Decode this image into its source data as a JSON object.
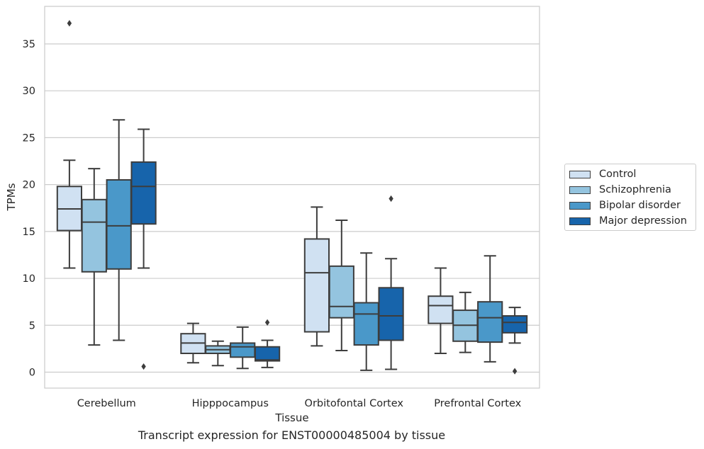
{
  "chart_data": {
    "type": "box",
    "title": "",
    "caption": "Transcript expression for ENST00000485004 by tissue",
    "xlabel": "Tissue",
    "ylabel": "TPMs",
    "categories": [
      "Cerebellum",
      "Hipppocampus",
      "Orbitofontal Cortex",
      "Prefrontal Cortex"
    ],
    "yticks": [
      0,
      5,
      10,
      15,
      20,
      25,
      30,
      35
    ],
    "ylim": [
      -1.7,
      39.0
    ],
    "grid": "horizontal",
    "legend_position": "right",
    "series": [
      {
        "name": "Control",
        "color": "#d0e1f2",
        "boxes": [
          {
            "whislo": 11.1,
            "q1": 15.1,
            "med": 17.4,
            "q3": 19.8,
            "whishi": 22.6,
            "fliers": []
          },
          {
            "whislo": 1.0,
            "q1": 2.0,
            "med": 3.1,
            "q3": 4.1,
            "whishi": 5.2,
            "fliers": []
          },
          {
            "whislo": 2.8,
            "q1": 4.3,
            "med": 10.6,
            "q3": 14.2,
            "whishi": 17.6,
            "fliers": []
          },
          {
            "whislo": 2.0,
            "q1": 5.2,
            "med": 7.1,
            "q3": 8.1,
            "whishi": 11.1,
            "fliers": []
          }
        ]
      },
      {
        "name": "Schizophrenia",
        "color": "#94c4df",
        "boxes": [
          {
            "whislo": 2.9,
            "q1": 10.7,
            "med": 16.0,
            "q3": 18.4,
            "whishi": 21.7,
            "fliers": []
          },
          {
            "whislo": 0.7,
            "q1": 2.0,
            "med": 2.4,
            "q3": 2.8,
            "whishi": 3.3,
            "fliers": []
          },
          {
            "whislo": 2.3,
            "q1": 5.8,
            "med": 7.0,
            "q3": 11.3,
            "whishi": 16.2,
            "fliers": []
          },
          {
            "whislo": 2.1,
            "q1": 3.3,
            "med": 5.0,
            "q3": 6.6,
            "whishi": 8.5,
            "fliers": []
          }
        ]
      },
      {
        "name": "Bipolar disorder",
        "color": "#4a98c9",
        "boxes": [
          {
            "whislo": 3.4,
            "q1": 11.0,
            "med": 15.6,
            "q3": 20.5,
            "whishi": 26.9,
            "fliers": []
          },
          {
            "whislo": 0.4,
            "q1": 1.6,
            "med": 2.7,
            "q3": 3.1,
            "whishi": 4.8,
            "fliers": []
          },
          {
            "whislo": 0.2,
            "q1": 2.9,
            "med": 6.2,
            "q3": 7.4,
            "whishi": 12.7,
            "fliers": []
          },
          {
            "whislo": 1.1,
            "q1": 3.2,
            "med": 5.8,
            "q3": 7.5,
            "whishi": 12.4,
            "fliers": []
          }
        ]
      },
      {
        "name": "Major depression",
        "color": "#1764ab",
        "boxes": [
          {
            "whislo": 11.1,
            "q1": 15.8,
            "med": 19.8,
            "q3": 22.4,
            "whishi": 25.9,
            "fliers": [
              0.6
            ]
          },
          {
            "whislo": 0.5,
            "q1": 1.2,
            "med": 1.3,
            "q3": 2.7,
            "whishi": 3.4,
            "fliers": [
              5.3
            ]
          },
          {
            "whislo": 0.3,
            "q1": 3.4,
            "med": 6.0,
            "q3": 9.0,
            "whishi": 12.1,
            "fliers": [
              18.5
            ]
          },
          {
            "whislo": 3.1,
            "q1": 4.2,
            "med": 5.3,
            "q3": 6.0,
            "whishi": 6.9,
            "fliers": [
              0.1
            ]
          }
        ]
      }
    ],
    "outliers": [
      {
        "category": "Cerebellum",
        "series": "Control",
        "value": 37.2
      }
    ]
  }
}
